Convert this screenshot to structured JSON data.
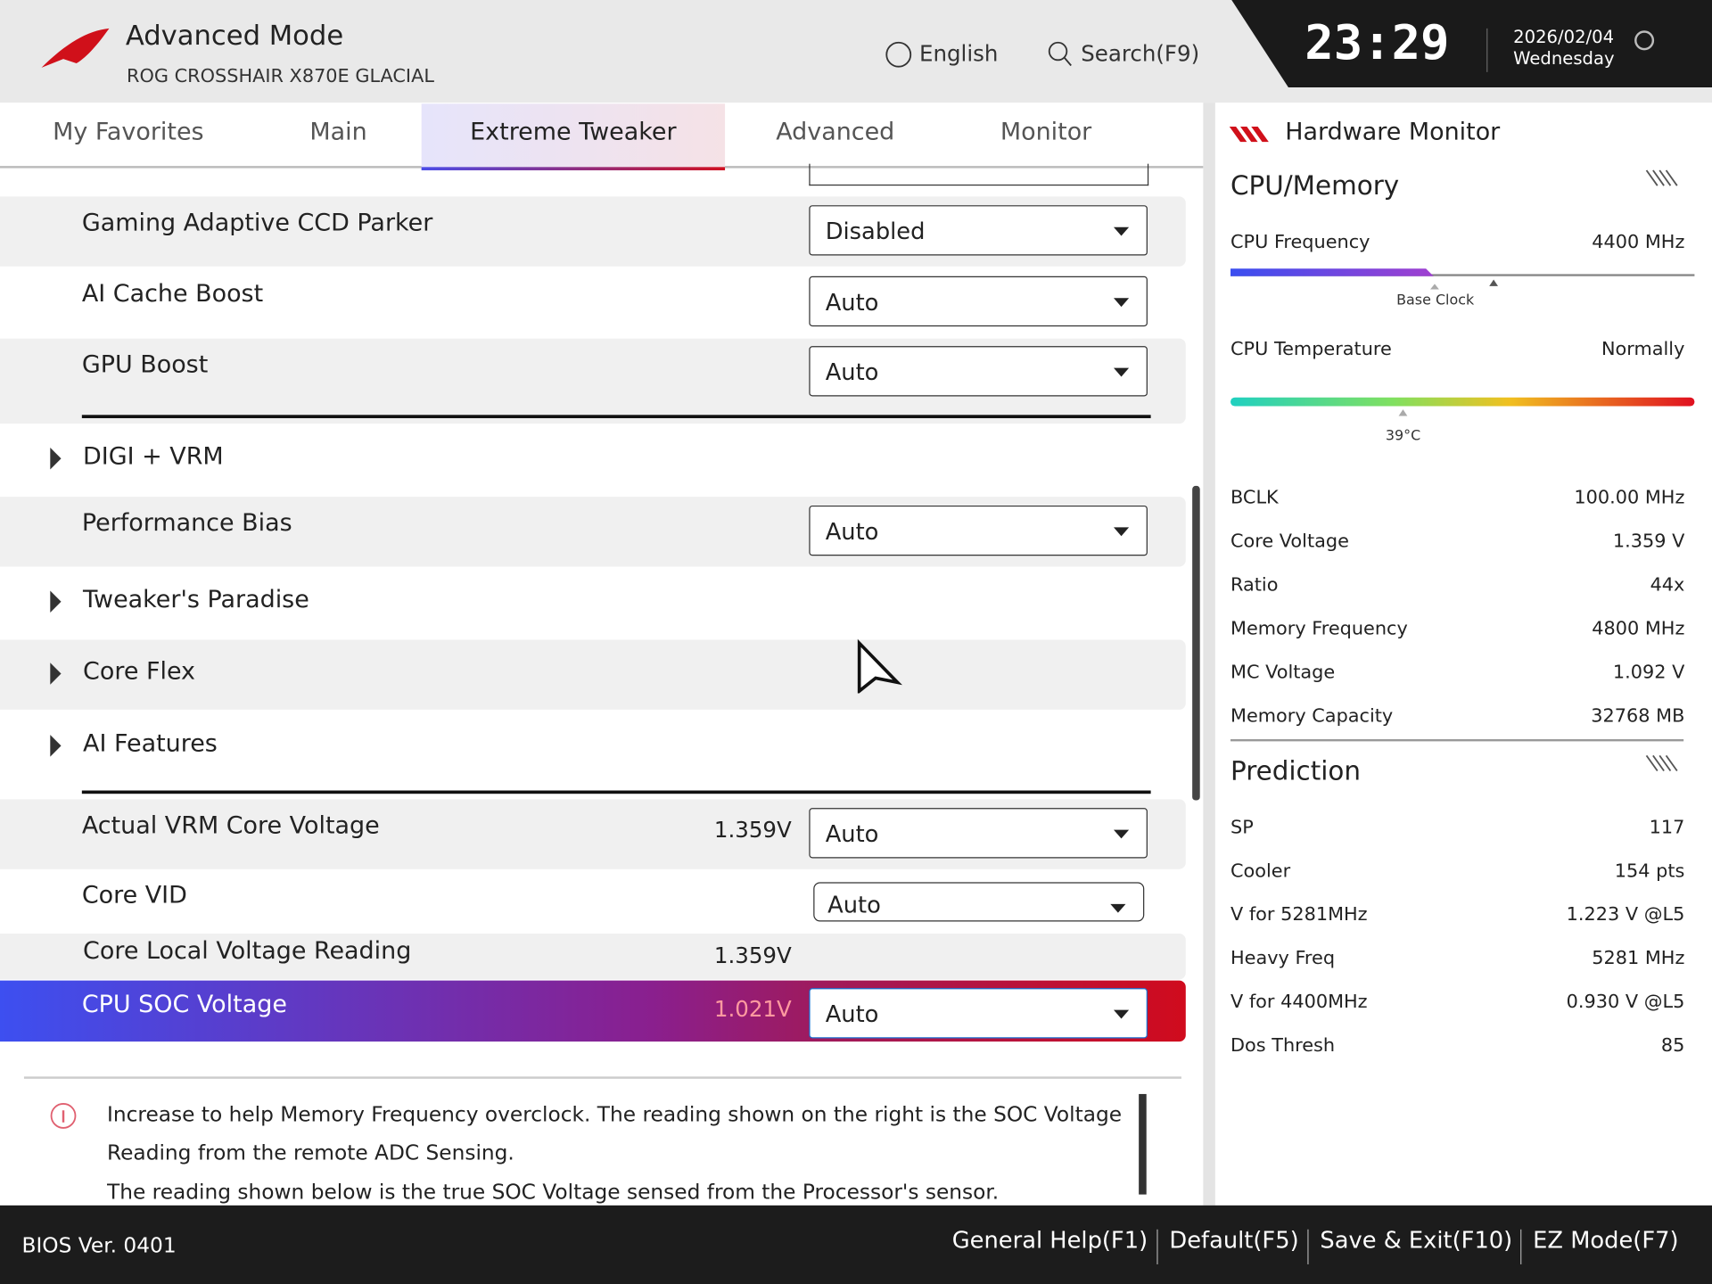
{
  "header": {
    "title": "Advanced Mode",
    "model": "ROG CROSSHAIR X870E GLACIAL",
    "language": "English",
    "search": "Search(F9)",
    "time": "23:29",
    "date": "2026/02/04",
    "weekday": "Wednesday"
  },
  "tabs": [
    "My Favorites",
    "Main",
    "Extreme Tweaker",
    "Advanced",
    "Monitor"
  ],
  "settings": [
    {
      "label": "Gaming Adaptive CCD Parker",
      "value": "Disabled"
    },
    {
      "label": "AI Cache Boost",
      "value": "Auto"
    },
    {
      "label": "GPU Boost",
      "value": "Auto"
    },
    {
      "label": "DIGI + VRM"
    },
    {
      "label": "Performance Bias",
      "value": "Auto"
    },
    {
      "label": "Tweaker's Paradise"
    },
    {
      "label": "Core Flex"
    },
    {
      "label": "AI Features"
    },
    {
      "label": "Actual VRM Core Voltage",
      "reading": "1.359V",
      "value": "Auto"
    },
    {
      "label": "Core VID",
      "value": "Auto"
    },
    {
      "label": "Core Local Voltage Reading",
      "reading": "1.359V"
    },
    {
      "label": "CPU SOC Voltage",
      "reading": "1.021V",
      "value": "Auto"
    }
  ],
  "help": [
    "Increase to help Memory Frequency overclock. The reading shown on the right is the SOC Voltage",
    "Reading from the remote ADC Sensing.",
    "The reading shown below is the true SOC Voltage sensed from the Processor's sensor."
  ],
  "monitor": {
    "title": "Hardware Monitor",
    "section": "CPU/Memory",
    "cpu_frequency": {
      "label": "CPU Frequency",
      "value": "4400 MHz",
      "marker": "Base Clock"
    },
    "cpu_temperature": {
      "label": "CPU Temperature",
      "value": "Normally",
      "marker": "39°C"
    },
    "items": [
      [
        "BCLK",
        "100.00 MHz"
      ],
      [
        "Core Voltage",
        "1.359 V"
      ],
      [
        "Ratio",
        "44x"
      ],
      [
        "Memory Frequency",
        "4800 MHz"
      ],
      [
        "MC Voltage",
        "1.092 V"
      ],
      [
        "Memory Capacity",
        "32768 MB"
      ]
    ],
    "prediction": {
      "title": "Prediction",
      "items": [
        [
          "SP",
          "117"
        ],
        [
          "Cooler",
          "154 pts"
        ],
        [
          "V for 5281MHz",
          "1.223 V @L5"
        ],
        [
          "Heavy Freq",
          "5281 MHz"
        ],
        [
          "V for 4400MHz",
          "0.930 V @L5"
        ],
        [
          "Dos Thresh",
          "85"
        ]
      ]
    }
  },
  "footer": {
    "bios": "BIOS Ver. 0401",
    "buttons": [
      "General Help(F1)",
      "Default(F5)",
      "Save & Exit(F10)",
      "EZ Mode(F7)"
    ]
  }
}
